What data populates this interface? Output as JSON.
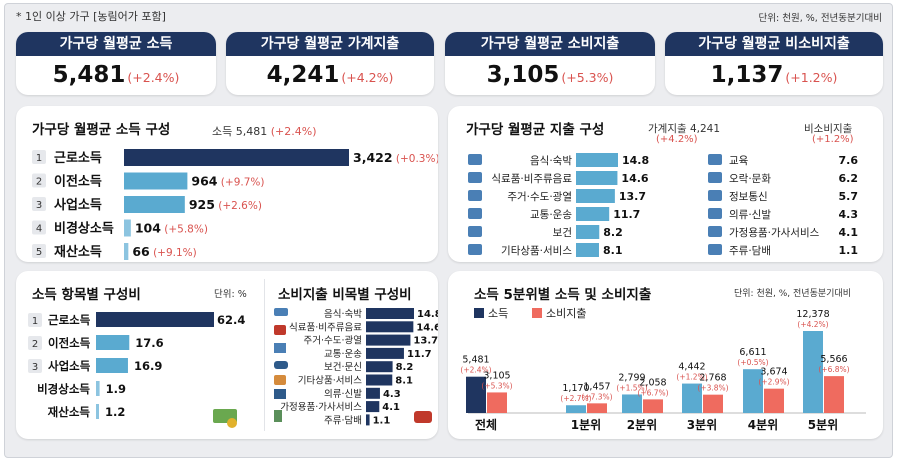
{
  "note": "* 1인 이상 가구 [농림어가 포함]",
  "unit": "단위: 천원, %, 전년동분기대비",
  "kpis": [
    {
      "label": "가구당 월평균 소득",
      "value": "5,481",
      "change": "(+2.4%)"
    },
    {
      "label": "가구당 월평균 가계지출",
      "value": "4,241",
      "change": "(+4.2%)"
    },
    {
      "label": "가구당 월평균 소비지출",
      "value": "3,105",
      "change": "(+5.3%)"
    },
    {
      "label": "가구당 월평균 비소비지출",
      "value": "1,137",
      "change": "(+1.2%)"
    }
  ],
  "income_panel": {
    "title": "가구당 월평균 소득 구성",
    "total_label": "소득 5,481",
    "total_change": "(+2.4%)"
  },
  "expense_panel": {
    "title": "가구당 월평균 지출 구성",
    "household_label": "가계지출 4,241",
    "household_change": "(+4.2%)",
    "nonconsumption_label": "비소비지출",
    "nonconsumption_change": "(+1.2%)"
  },
  "ratio_panel": {
    "title": "소득 항목별 구성비",
    "unit": "단위: %"
  },
  "cons_panel": {
    "title": "소비지출 비목별 구성비"
  },
  "quintile_panel": {
    "title": "소득 5분위별 소득 및 소비지출",
    "unit": "단위: 천원, %, 전년동분기대비"
  },
  "colors": {
    "navy": "#1f3560",
    "teal": "#5aaad0",
    "lightblue": "#8cc4e0",
    "salmon": "#ef6b5f",
    "red_text": "#d9534f"
  },
  "chart_data": [
    {
      "type": "bar",
      "title": "가구당 월평균 소득 구성",
      "categories": [
        "근로소득",
        "이전소득",
        "사업소득",
        "비경상소득",
        "재산소득"
      ],
      "ranks": [
        "1",
        "2",
        "3",
        "4",
        "5"
      ],
      "values": [
        3422,
        964,
        925,
        104,
        66
      ],
      "value_labels": [
        "3,422",
        "964",
        "925",
        "104",
        "66"
      ],
      "changes": [
        "(+0.3%)",
        "(+9.7%)",
        "(+2.6%)",
        "(+5.8%)",
        "(+9.1%)"
      ]
    },
    {
      "type": "bar",
      "title": "가구당 월평균 지출 구성 - 소비지출",
      "categories": [
        "음식·숙박",
        "식료품·비주류음료",
        "주거·수도·광열",
        "교통·운송",
        "보건",
        "기타상품·서비스"
      ],
      "icons": [
        "bed-icon",
        "grocery-icon",
        "house-icon",
        "car-icon",
        "medical-kit-icon",
        "gift-box-icon"
      ],
      "values": [
        14.8,
        14.6,
        13.7,
        11.7,
        8.2,
        8.1
      ]
    },
    {
      "type": "table",
      "title": "가구당 월평균 지출 구성 - 비소비지출",
      "categories": [
        "교육",
        "오락·문화",
        "정보통신",
        "의류·신발",
        "가정용품·가사서비스",
        "주류·담배"
      ],
      "icons": [
        "graduation-cap-icon",
        "camera-icon",
        "phone-icon",
        "shirt-icon",
        "sofa-icon",
        "bottle-icon"
      ],
      "values": [
        7.6,
        6.2,
        5.7,
        4.3,
        4.1,
        1.1
      ]
    },
    {
      "type": "bar",
      "title": "소득 항목별 구성비",
      "categories": [
        "근로소득",
        "이전소득",
        "사업소득",
        "비경상소득",
        "재산소득"
      ],
      "ranks": [
        "1",
        "2",
        "3",
        "",
        ""
      ],
      "values": [
        62.4,
        17.6,
        16.9,
        1.9,
        1.2
      ]
    },
    {
      "type": "bar",
      "title": "소비지출 비목별 구성비",
      "categories": [
        "음식·숙박",
        "식료품·비주류음료",
        "주거·수도·광열",
        "교통·운송",
        "보건·문신",
        "기타상품·서비스",
        "의류·신발",
        "가정용품·가사서비스",
        "주류·담배"
      ],
      "values": [
        14.8,
        14.6,
        13.7,
        11.7,
        8.2,
        8.1,
        4.3,
        4.1,
        1.1
      ]
    },
    {
      "type": "bar",
      "title": "소득 5분위별 소득 및 소비지출",
      "categories": [
        "전체",
        "1분위",
        "2분위",
        "3분위",
        "4분위",
        "5분위"
      ],
      "series": [
        {
          "name": "소득",
          "values": [
            5481,
            1170,
            2799,
            4442,
            6611,
            12378
          ],
          "labels": [
            "5,481",
            "1,170",
            "2,799",
            "4,442",
            "6,611",
            "12,378"
          ],
          "changes": [
            "(+2.4%)",
            "(+2.7%)",
            "(+1.5%)",
            "(+1.2%)",
            "(+0.5%)",
            "(+4.2%)"
          ]
        },
        {
          "name": "소비지출",
          "values": [
            3105,
            1457,
            2058,
            2768,
            3674,
            5566
          ],
          "labels": [
            "3,105",
            "1,457",
            "2,058",
            "2,768",
            "3,674",
            "5,566"
          ],
          "changes": [
            "(+5.3%)",
            "(+7.3%)",
            "(+6.7%)",
            "(+3.8%)",
            "(+2.9%)",
            "(+6.8%)"
          ]
        }
      ]
    }
  ]
}
